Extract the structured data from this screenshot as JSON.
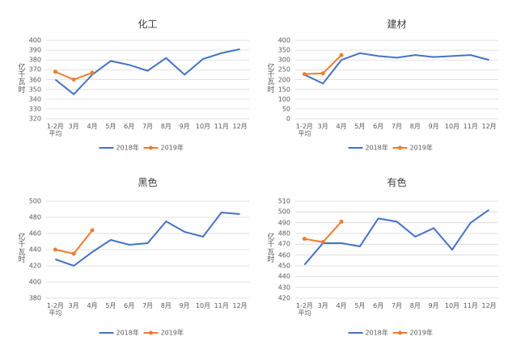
{
  "chart_data": [
    {
      "type": "line",
      "title": "化工",
      "y_label": "亿千瓦时",
      "categories": [
        "1-2月\n平均",
        "3月",
        "4月",
        "5月",
        "6月",
        "7月",
        "8月",
        "9月",
        "10月",
        "11月",
        "12月"
      ],
      "series": [
        {
          "name": "2018年",
          "color": "#4472c4",
          "values": [
            360,
            345,
            365,
            379,
            375,
            369,
            382,
            365,
            381,
            387,
            391
          ]
        },
        {
          "name": "2019年",
          "color": "#ed7d31",
          "values": [
            368,
            360,
            367,
            null,
            null,
            null,
            null,
            null,
            null,
            null,
            null
          ]
        }
      ],
      "ylim": [
        320,
        400
      ],
      "yticks": [
        320,
        330,
        340,
        350,
        360,
        370,
        380,
        390,
        400
      ],
      "grid": true
    },
    {
      "type": "line",
      "title": "建材",
      "y_label": "亿千瓦时",
      "categories": [
        "1-2月\n平均",
        "3月",
        "4月",
        "5月",
        "6月",
        "7月",
        "8月",
        "9月",
        "10月",
        "11月",
        "12月"
      ],
      "series": [
        {
          "name": "2018年",
          "color": "#4472c4",
          "values": [
            225,
            180,
            300,
            335,
            320,
            312,
            325,
            315,
            320,
            325,
            300
          ]
        },
        {
          "name": "2019年",
          "color": "#ed7d31",
          "values": [
            228,
            232,
            325,
            null,
            null,
            null,
            null,
            null,
            null,
            null,
            null
          ]
        }
      ],
      "ylim": [
        0,
        400
      ],
      "yticks": [
        0,
        50,
        100,
        150,
        200,
        250,
        300,
        350,
        400
      ],
      "grid": true
    },
    {
      "type": "line",
      "title": "黑色",
      "y_label": "亿千瓦时",
      "categories": [
        "1-2月\n平均",
        "3月",
        "4月",
        "5月",
        "6月",
        "7月",
        "8月",
        "9月",
        "10月",
        "11月",
        "12月"
      ],
      "series": [
        {
          "name": "2018年",
          "color": "#4472c4",
          "values": [
            428,
            420,
            437,
            452,
            446,
            448,
            475,
            462,
            456,
            486,
            484
          ]
        },
        {
          "name": "2019年",
          "color": "#ed7d31",
          "values": [
            440,
            435,
            464,
            null,
            null,
            null,
            null,
            null,
            null,
            null,
            null
          ]
        }
      ],
      "ylim": [
        380,
        500
      ],
      "yticks": [
        380,
        400,
        420,
        440,
        460,
        480,
        500
      ],
      "grid": true
    },
    {
      "type": "line",
      "title": "有色",
      "y_label": "亿千瓦时",
      "categories": [
        "1-2月\n平均",
        "3月",
        "4月",
        "5月",
        "6月",
        "7月",
        "8月",
        "9月",
        "10月",
        "11月",
        "12月"
      ],
      "series": [
        {
          "name": "2018年",
          "color": "#4472c4",
          "values": [
            451,
            471,
            471,
            468,
            494,
            491,
            477,
            485,
            465,
            490,
            502
          ]
        },
        {
          "name": "2019年",
          "color": "#ed7d31",
          "values": [
            475,
            472,
            491,
            null,
            null,
            null,
            null,
            null,
            null,
            null,
            null
          ]
        }
      ],
      "ylim": [
        420,
        510
      ],
      "yticks": [
        420,
        430,
        440,
        450,
        460,
        470,
        480,
        490,
        500,
        510
      ],
      "grid": true
    }
  ]
}
